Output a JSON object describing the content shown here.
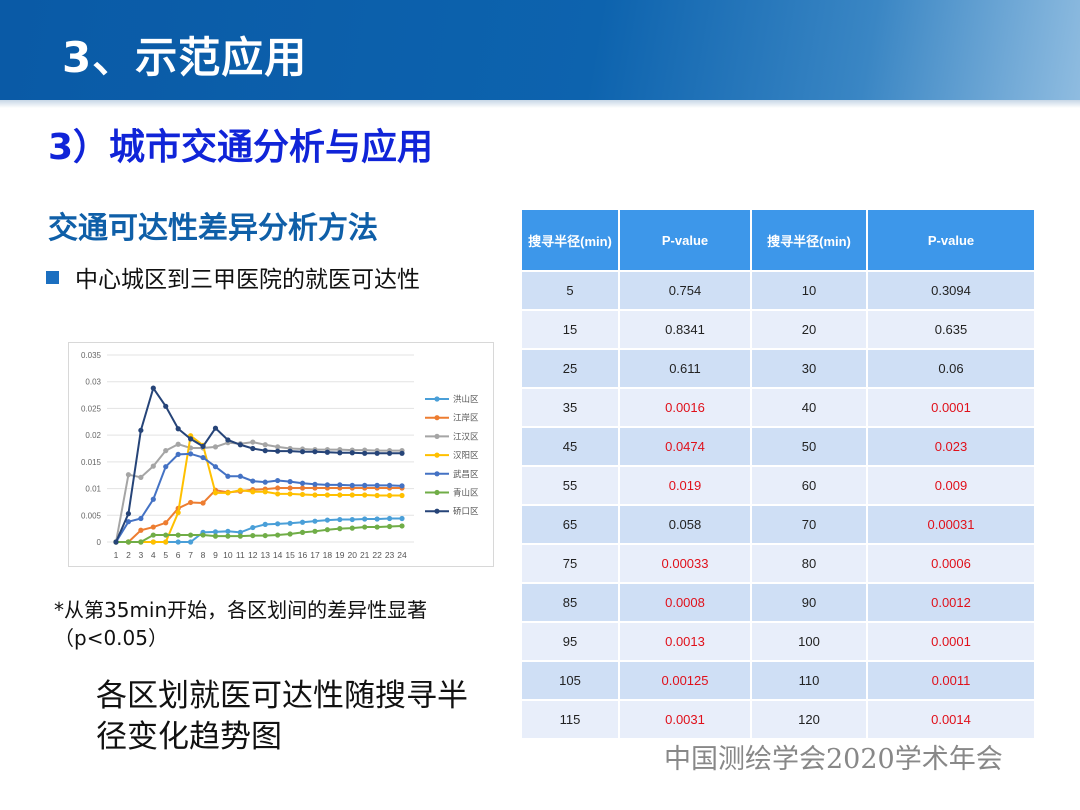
{
  "header": {
    "title": "3、示范应用",
    "subtitle": "3）城市交通分析与应用"
  },
  "section": {
    "title": "交通可达性差异分析方法",
    "bullet": "中心城区到三甲医院的就医可达性"
  },
  "note": "*从第35min开始，各区划间的差异性显著（p<0.05）",
  "caption": "各区划就医可达性随搜寻半径变化趋势图",
  "footer": "中国测绘学会2020学术年会",
  "colors": {
    "significant": "#e0101a",
    "header": "#3d97ea",
    "banner": "#0d63ae"
  },
  "table": {
    "headers": [
      "搜寻半径(min)",
      "P-value",
      "搜寻半径(min)",
      "P-value"
    ],
    "rows": [
      [
        "5",
        "0.754",
        "10",
        "0.3094"
      ],
      [
        "15",
        "0.8341",
        "20",
        "0.635"
      ],
      [
        "25",
        "0.611",
        "30",
        "0.06"
      ],
      [
        "35",
        "0.0016",
        "40",
        "0.0001"
      ],
      [
        "45",
        "0.0474",
        "50",
        "0.023"
      ],
      [
        "55",
        "0.019",
        "60",
        "0.009"
      ],
      [
        "65",
        "0.058",
        "70",
        "0.00031"
      ],
      [
        "75",
        "0.00033",
        "80",
        "0.0006"
      ],
      [
        "85",
        "0.0008",
        "90",
        "0.0012"
      ],
      [
        "95",
        "0.0013",
        "100",
        "0.0001"
      ],
      [
        "105",
        "0.00125",
        "110",
        "0.0011"
      ],
      [
        "115",
        "0.0031",
        "120",
        "0.0014"
      ]
    ]
  },
  "chart_data": {
    "type": "line",
    "x": [
      1,
      2,
      3,
      4,
      5,
      6,
      7,
      8,
      9,
      10,
      11,
      12,
      13,
      14,
      15,
      16,
      17,
      18,
      19,
      20,
      21,
      22,
      23,
      24
    ],
    "ylim": [
      0,
      0.035
    ],
    "yticks": [
      "0",
      "0.005",
      "0.01",
      "0.015",
      "0.02",
      "0.025",
      "0.03",
      "0.035"
    ],
    "grid": true,
    "legend": "right",
    "series": [
      {
        "name": "洪山区",
        "color": "#4a9fd8",
        "values": [
          0,
          0,
          0,
          0,
          0,
          0,
          0,
          0.0018,
          0.0019,
          0.002,
          0.0018,
          0.0027,
          0.0033,
          0.0034,
          0.0035,
          0.0037,
          0.0039,
          0.0041,
          0.0042,
          0.0042,
          0.0043,
          0.0043,
          0.0044,
          0.0044
        ]
      },
      {
        "name": "江岸区",
        "color": "#ed7d31",
        "values": [
          0,
          0,
          0.0022,
          0.0028,
          0.0036,
          0.0063,
          0.0074,
          0.0073,
          0.0097,
          0.0093,
          0.0095,
          0.0098,
          0.0099,
          0.0101,
          0.0101,
          0.0101,
          0.0101,
          0.0101,
          0.0101,
          0.0101,
          0.0101,
          0.0101,
          0.0101,
          0.0101
        ]
      },
      {
        "name": "江汉区",
        "color": "#a5a5a5",
        "values": [
          0,
          0.0126,
          0.0121,
          0.0142,
          0.0171,
          0.0183,
          0.0176,
          0.0176,
          0.0178,
          0.0186,
          0.0184,
          0.0187,
          0.0182,
          0.0178,
          0.0175,
          0.0174,
          0.0173,
          0.0173,
          0.0173,
          0.0172,
          0.0172,
          0.0171,
          0.0171,
          0.0171
        ]
      },
      {
        "name": "汉阳区",
        "color": "#ffc000",
        "values": [
          0,
          0,
          0,
          0,
          0,
          0.0055,
          0.0199,
          0.0181,
          0.0092,
          0.0092,
          0.0097,
          0.0094,
          0.0094,
          0.009,
          0.009,
          0.0089,
          0.0088,
          0.0088,
          0.0088,
          0.0088,
          0.0088,
          0.0087,
          0.0087,
          0.0087
        ]
      },
      {
        "name": "武昌区",
        "color": "#4472c4",
        "values": [
          0,
          0.0038,
          0.0044,
          0.008,
          0.0141,
          0.0164,
          0.0165,
          0.0158,
          0.0141,
          0.0123,
          0.0123,
          0.0114,
          0.0112,
          0.0115,
          0.0113,
          0.011,
          0.0108,
          0.0107,
          0.0107,
          0.0106,
          0.0106,
          0.0106,
          0.0106,
          0.0105
        ]
      },
      {
        "name": "青山区",
        "color": "#70ad47",
        "values": [
          0,
          0,
          0,
          0.0013,
          0.0013,
          0.0013,
          0.0013,
          0.0013,
          0.0011,
          0.0011,
          0.0011,
          0.0012,
          0.0012,
          0.0013,
          0.0015,
          0.0018,
          0.002,
          0.0023,
          0.0025,
          0.0026,
          0.0028,
          0.0028,
          0.0029,
          0.003
        ]
      },
      {
        "name": "硚口区",
        "color": "#264478",
        "values": [
          0,
          0.0053,
          0.0209,
          0.0288,
          0.0254,
          0.0212,
          0.0193,
          0.0179,
          0.0213,
          0.0191,
          0.0182,
          0.0175,
          0.0171,
          0.017,
          0.017,
          0.0169,
          0.0169,
          0.0168,
          0.0167,
          0.0167,
          0.0166,
          0.0166,
          0.0166,
          0.0166
        ]
      }
    ]
  }
}
